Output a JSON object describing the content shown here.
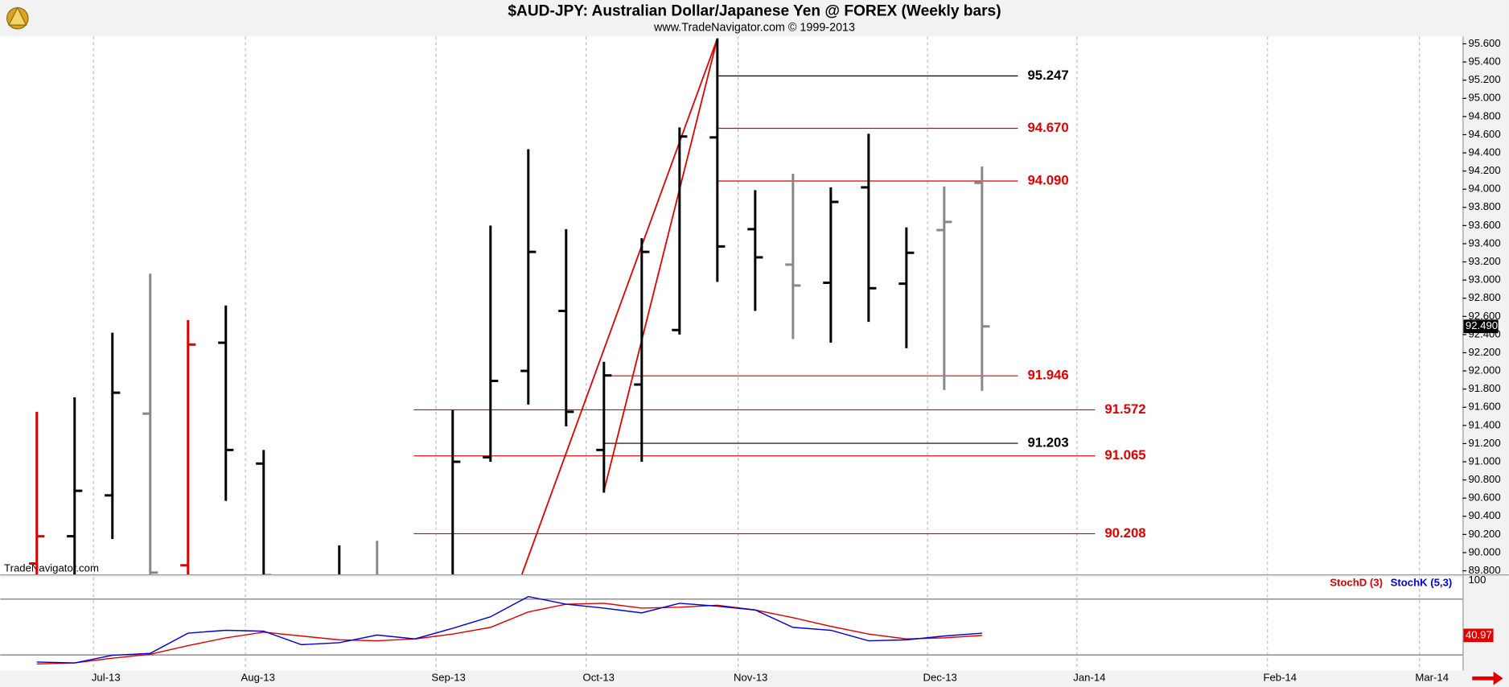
{
  "chart_data": [
    {
      "type": "ohlc",
      "title": "$AUD-JPY:  Australian Dollar/Japanese Yen @ FOREX  (Weekly bars)",
      "subtitle": "www.TradeNavigator.com © 1999-2013",
      "watermark": "TradeNavigator.com",
      "xlim": [
        -0.967,
        37.71
      ],
      "ylim": [
        89.76,
        95.68
      ],
      "yticks": [
        {
          "value": 89.8,
          "label": "89.800"
        },
        {
          "value": 90.0,
          "label": "90.000"
        },
        {
          "value": 90.2,
          "label": "90.200"
        },
        {
          "value": 90.4,
          "label": "90.400"
        },
        {
          "value": 90.6,
          "label": "90.600"
        },
        {
          "value": 90.8,
          "label": "90.800"
        },
        {
          "value": 91.0,
          "label": "91.000"
        },
        {
          "value": 91.2,
          "label": "91.200"
        },
        {
          "value": 91.4,
          "label": "91.400"
        },
        {
          "value": 91.6,
          "label": "91.600"
        },
        {
          "value": 91.8,
          "label": "91.800"
        },
        {
          "value": 92.0,
          "label": "92.000"
        },
        {
          "value": 92.2,
          "label": "92.200"
        },
        {
          "value": 92.4,
          "label": "92.400"
        },
        {
          "value": 92.6,
          "label": "92.600"
        },
        {
          "value": 92.8,
          "label": "92.800"
        },
        {
          "value": 93.0,
          "label": "93.000"
        },
        {
          "value": 93.2,
          "label": "93.200"
        },
        {
          "value": 93.4,
          "label": "93.400"
        },
        {
          "value": 93.6,
          "label": "93.600"
        },
        {
          "value": 93.8,
          "label": "93.800"
        },
        {
          "value": 94.0,
          "label": "94.000"
        },
        {
          "value": 94.2,
          "label": "94.200"
        },
        {
          "value": 94.4,
          "label": "94.400"
        },
        {
          "value": 94.6,
          "label": "94.600"
        },
        {
          "value": 94.8,
          "label": "94.800"
        },
        {
          "value": 95.0,
          "label": "95.000"
        },
        {
          "value": 95.2,
          "label": "95.200"
        },
        {
          "value": 95.4,
          "label": "95.400"
        },
        {
          "value": 95.6,
          "label": "95.600"
        }
      ],
      "x": [
        0,
        1,
        2,
        3,
        4,
        5,
        6,
        8,
        9,
        11,
        12,
        13,
        14,
        15,
        16,
        17,
        18,
        19,
        20,
        21,
        22,
        23,
        24,
        25
      ],
      "open": [
        89.88,
        90.18,
        90.63,
        91.53,
        89.86,
        92.31,
        90.98,
        89.7,
        89.68,
        89.7,
        91.05,
        92.0,
        92.66,
        91.13,
        91.85,
        92.45,
        94.57,
        93.56,
        93.17,
        92.97,
        94.02,
        92.96,
        93.55,
        94.07
      ],
      "high": [
        91.55,
        91.71,
        92.42,
        93.07,
        92.56,
        92.72,
        91.13,
        90.08,
        90.13,
        91.57,
        93.6,
        94.44,
        93.56,
        92.1,
        93.46,
        94.68,
        95.66,
        93.99,
        94.17,
        94.02,
        94.61,
        93.58,
        94.03,
        94.25
      ],
      "low": [
        89.6,
        89.6,
        90.15,
        89.76,
        89.76,
        90.57,
        89.6,
        89.6,
        89.6,
        89.6,
        91.0,
        91.63,
        91.39,
        90.66,
        91.0,
        92.4,
        92.98,
        92.66,
        92.35,
        92.31,
        92.54,
        92.25,
        91.79,
        91.78
      ],
      "close": [
        90.18,
        90.68,
        91.76,
        89.78,
        92.29,
        91.13,
        89.75,
        89.65,
        89.7,
        91.0,
        91.89,
        93.31,
        91.55,
        91.95,
        93.31,
        94.58,
        93.37,
        93.25,
        92.94,
        93.86,
        92.91,
        93.3,
        93.64,
        92.49
      ],
      "colors": [
        "#e00000",
        "#000000",
        "#000000",
        "#888888",
        "#e00000",
        "#000000",
        "#000000",
        "#000000",
        "#888888",
        "#000000",
        "#000000",
        "#000000",
        "#000000",
        "#000000",
        "#000000",
        "#000000",
        "#000000",
        "#000000",
        "#888888",
        "#000000",
        "#000000",
        "#000000",
        "#888888",
        "#888888"
      ],
      "last_price": {
        "value": 92.49,
        "label": "92.490"
      },
      "levels": [
        {
          "value": 95.247,
          "label": "95.247",
          "color": "#000000",
          "from": 18,
          "to": 25.95
        },
        {
          "value": 94.67,
          "label": "94.670",
          "color": "#e00000",
          "from": 18,
          "to": 25.95
        },
        {
          "value": 94.09,
          "label": "94.090",
          "color": "#e00000",
          "from": 18,
          "to": 25.95
        },
        {
          "value": 91.946,
          "label": "91.946",
          "color": "#e00000",
          "from": 14.99,
          "to": 25.95
        },
        {
          "value": 91.572,
          "label": "91.572",
          "color": "#e00000",
          "from": 9.97,
          "to": 27.99
        },
        {
          "value": 91.203,
          "label": "91.203",
          "color": "#000000",
          "from": 14.99,
          "to": 25.95
        },
        {
          "value": 91.065,
          "label": "91.065",
          "color": "#e00000",
          "from": 9.97,
          "to": 27.99
        },
        {
          "value": 90.208,
          "label": "90.208",
          "color": "#e00000",
          "from": 9.97,
          "to": 27.99
        }
      ],
      "trendlines": [
        {
          "x": [
            12.83,
            18
          ],
          "y": [
            89.76,
            95.66
          ],
          "color": "#e00000"
        },
        {
          "x": [
            14.99,
            18
          ],
          "y": [
            90.66,
            95.66
          ],
          "color": "#e00000"
        }
      ]
    },
    {
      "type": "line",
      "xlim": [
        -0.967,
        37.71
      ],
      "ylim": [
        0,
        100
      ],
      "yticks": [
        100
      ],
      "levels": [
        80,
        20
      ],
      "xticks": [
        {
          "value": 1.83,
          "label": "Jul-13"
        },
        {
          "value": 5.85,
          "label": "Aug-13"
        },
        {
          "value": 10.89,
          "label": "Sep-13"
        },
        {
          "value": 14.86,
          "label": "Oct-13"
        },
        {
          "value": 18.88,
          "label": "Nov-13"
        },
        {
          "value": 23.89,
          "label": "Dec-13"
        },
        {
          "value": 27.84,
          "label": "Jan-14"
        },
        {
          "value": 32.88,
          "label": "Feb-14"
        },
        {
          "value": 36.9,
          "label": "Mar-14"
        }
      ],
      "x": [
        0,
        1,
        2,
        3,
        4,
        5,
        6,
        7,
        8,
        9,
        10,
        11,
        12,
        13,
        14,
        15,
        16,
        17,
        18,
        19,
        20,
        21,
        22,
        23,
        24,
        25
      ],
      "series": [
        {
          "name": "StochD (3)",
          "color": "#e00000",
          "values": [
            10.3,
            11.4,
            16.5,
            20.7,
            30,
            38.3,
            44.5,
            40.3,
            36.2,
            35.2,
            37.2,
            42.4,
            49.6,
            66.2,
            74.5,
            75.5,
            70.3,
            71.3,
            73.4,
            68.3,
            60,
            50.7,
            42.4,
            37.2,
            38.3,
            40.97
          ]
        },
        {
          "name": "StochK (5,3)",
          "color": "#0000e0",
          "values": [
            12.4,
            11.4,
            19.6,
            21.7,
            43.4,
            46.5,
            45.5,
            31,
            33.1,
            41.4,
            37.2,
            48.6,
            61,
            82.7,
            74.5,
            70.3,
            65.2,
            75.5,
            72.4,
            68.3,
            49.6,
            46.5,
            35.2,
            36.2,
            40.3,
            43.4
          ]
        }
      ]
    }
  ]
}
